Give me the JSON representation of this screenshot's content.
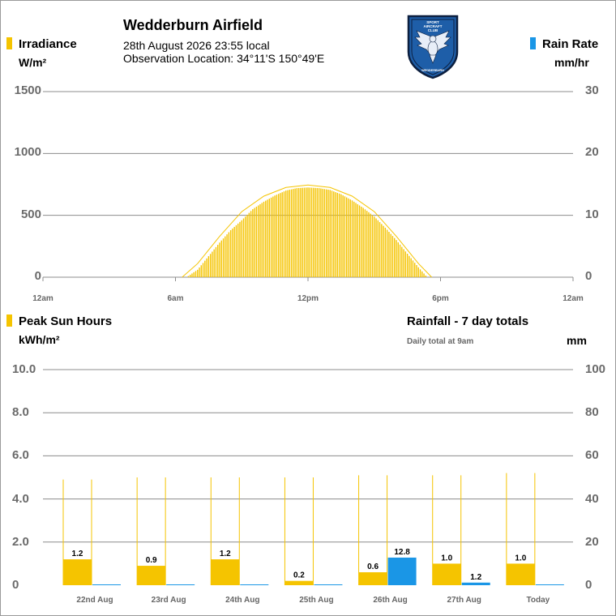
{
  "header": {
    "title": "Wedderburn Airfield",
    "datetime": "28th August 2026  23:55 local",
    "location": "Observation Location: 34°11'S 150°49'E",
    "logo_text": [
      "SPORT",
      "AIRCRAFT",
      "CLUB"
    ],
    "logo_bottom_text": "WEDDERBURN"
  },
  "colors": {
    "irradiance": "#f5c400",
    "rain": "#1a96e6",
    "grid": "#8c8c8c",
    "logo_blue": "#1e5ea8"
  },
  "top_chart": {
    "left_legend": "Irradiance",
    "left_unit": "W/m²",
    "right_legend": "Rain Rate",
    "right_unit": "mm/hr",
    "left_ticks": [
      "1500",
      "1000",
      "500",
      "0"
    ],
    "right_ticks": [
      "30",
      "20",
      "10",
      "0"
    ],
    "x_ticks": [
      "12am",
      "6am",
      "12pm",
      "6pm",
      "12am"
    ]
  },
  "bottom_chart": {
    "left_legend": "Peak Sun Hours",
    "left_unit": "kWh/m²",
    "right_title": "Rainfall - 7 day totals",
    "right_note": "Daily total at 9am",
    "right_unit": "mm",
    "left_ticks": [
      "10.0",
      "8.0",
      "6.0",
      "4.0",
      "2.0",
      "0"
    ],
    "right_ticks": [
      "100",
      "80",
      "60",
      "40",
      "20",
      "0"
    ],
    "days": [
      "22nd Aug",
      "23rd Aug",
      "24th Aug",
      "25th Aug",
      "26th Aug",
      "27th Aug",
      "Today"
    ]
  },
  "chart_data": [
    {
      "type": "area",
      "title": "Irradiance",
      "x_unit": "hour of day",
      "xlim": [
        0,
        24
      ],
      "ylim_left": [
        0,
        1500
      ],
      "ylim_right": [
        0,
        30
      ],
      "series": [
        {
          "name": "Irradiance",
          "points": [
            [
              6.5,
              0
            ],
            [
              7.0,
              60
            ],
            [
              7.5,
              170
            ],
            [
              8.0,
              280
            ],
            [
              8.5,
              380
            ],
            [
              9.0,
              460
            ],
            [
              9.5,
              550
            ],
            [
              10.0,
              610
            ],
            [
              10.5,
              660
            ],
            [
              11.0,
              700
            ],
            [
              11.5,
              720
            ],
            [
              12.0,
              725
            ],
            [
              12.5,
              720
            ],
            [
              13.0,
              705
            ],
            [
              13.5,
              670
            ],
            [
              14.0,
              620
            ],
            [
              14.5,
              560
            ],
            [
              15.0,
              490
            ],
            [
              15.5,
              400
            ],
            [
              16.0,
              300
            ],
            [
              16.5,
              190
            ],
            [
              17.0,
              80
            ],
            [
              17.4,
              0
            ]
          ]
        },
        {
          "name": "Clear sky",
          "points": [
            [
              6.3,
              0
            ],
            [
              7.0,
              110
            ],
            [
              8.0,
              330
            ],
            [
              9.0,
              530
            ],
            [
              10.0,
              655
            ],
            [
              11.0,
              725
            ],
            [
              12.0,
              745
            ],
            [
              13.0,
              725
            ],
            [
              14.0,
              655
            ],
            [
              15.0,
              530
            ],
            [
              16.0,
              330
            ],
            [
              17.0,
              110
            ],
            [
              17.6,
              0
            ]
          ]
        }
      ]
    },
    {
      "type": "bar",
      "categories": [
        "22nd Aug",
        "23rd Aug",
        "24th Aug",
        "25th Aug",
        "26th Aug",
        "27th Aug",
        "Today"
      ],
      "ylim_left": [
        0,
        10
      ],
      "ylim_right": [
        0,
        100
      ],
      "series": [
        {
          "name": "Peak Sun Hours",
          "axis": "left",
          "values": [
            1.2,
            0.9,
            1.2,
            0.2,
            0.6,
            1.0,
            1.0
          ]
        },
        {
          "name": "Rainfall",
          "axis": "right",
          "values": [
            0,
            0,
            0,
            0,
            12.8,
            1.2,
            0
          ]
        }
      ],
      "labels": {
        "sun": [
          "1.2",
          "0.9",
          "1.2",
          "0.2",
          "0.6",
          "1.0",
          "1.0"
        ],
        "rain": [
          "",
          "",
          "",
          "",
          "12.8",
          "1.2",
          ""
        ]
      },
      "clear_sky_peak_sun_hours": [
        4.9,
        5.0,
        5.0,
        5.0,
        5.1,
        5.1,
        5.2
      ]
    }
  ]
}
